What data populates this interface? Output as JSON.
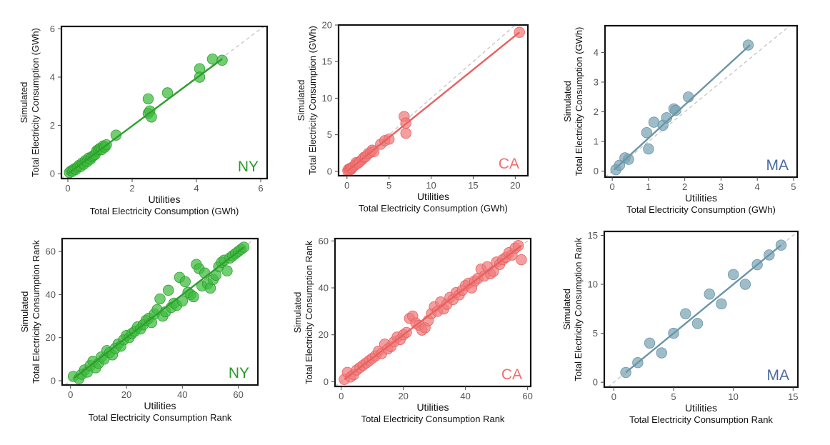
{
  "figure": {
    "rows": 2,
    "cols": 3
  },
  "chart_data": [
    {
      "id": "ny-gwh",
      "type": "scatter",
      "xlabel": [
        "Utilities",
        "Total Electricity Consumption (GWh)"
      ],
      "ylabel": [
        "Simulated",
        "Total Electricity Consumption (GWh)"
      ],
      "xlim": [
        -0.2,
        6.2
      ],
      "ylim": [
        -0.2,
        6.1
      ],
      "xticks": [
        0,
        2,
        4,
        6
      ],
      "yticks": [
        0,
        2,
        4,
        6
      ],
      "state": "NY",
      "color": "#3dbb3d",
      "stroke": "#2e9e2e",
      "label_color": "#2a9a2a",
      "trend": [
        [
          0.02,
          0.02
        ],
        [
          4.8,
          4.75
        ]
      ],
      "identity": [
        [
          -0.2,
          -0.2
        ],
        [
          6.2,
          6.2
        ]
      ],
      "points": [
        [
          0.05,
          0.05
        ],
        [
          0.1,
          0.12
        ],
        [
          0.15,
          0.1
        ],
        [
          0.2,
          0.2
        ],
        [
          0.25,
          0.18
        ],
        [
          0.3,
          0.28
        ],
        [
          0.35,
          0.35
        ],
        [
          0.4,
          0.3
        ],
        [
          0.45,
          0.45
        ],
        [
          0.5,
          0.4
        ],
        [
          0.55,
          0.55
        ],
        [
          0.6,
          0.5
        ],
        [
          0.65,
          0.65
        ],
        [
          0.7,
          0.6
        ],
        [
          0.75,
          0.7
        ],
        [
          0.8,
          0.75
        ],
        [
          0.85,
          0.8
        ],
        [
          0.9,
          0.95
        ],
        [
          0.95,
          1.0
        ],
        [
          1.0,
          1.05
        ],
        [
          1.05,
          1.0
        ],
        [
          1.1,
          1.15
        ],
        [
          1.15,
          1.1
        ],
        [
          1.2,
          1.2
        ],
        [
          1.5,
          1.6
        ],
        [
          2.5,
          3.1
        ],
        [
          2.5,
          2.5
        ],
        [
          2.55,
          2.6
        ],
        [
          2.6,
          2.35
        ],
        [
          3.1,
          3.35
        ],
        [
          4.1,
          4.35
        ],
        [
          4.1,
          4.0
        ],
        [
          4.5,
          4.75
        ],
        [
          4.8,
          4.7
        ]
      ]
    },
    {
      "id": "ca-gwh",
      "type": "scatter",
      "xlabel": [
        "Utilities",
        "Total Electricity Consumption (GWh)"
      ],
      "ylabel": [
        "Simulated",
        "Total Electricity Consumption (GWh)"
      ],
      "xlim": [
        -1,
        21.5
      ],
      "ylim": [
        -0.6,
        20
      ],
      "xticks": [
        0,
        5,
        10,
        15,
        20
      ],
      "yticks": [
        0,
        5,
        10,
        15,
        20
      ],
      "state": "CA",
      "color": "#f07a7a",
      "stroke": "#e86060",
      "label_color": "#f06f6f",
      "trend": [
        [
          0,
          0
        ],
        [
          20.5,
          19
        ]
      ],
      "identity": [
        [
          -0.6,
          -0.6
        ],
        [
          20.5,
          20.5
        ]
      ],
      "points": [
        [
          0.1,
          0.1
        ],
        [
          0.2,
          0.3
        ],
        [
          0.3,
          0.15
        ],
        [
          0.4,
          0.4
        ],
        [
          0.5,
          0.3
        ],
        [
          0.6,
          0.5
        ],
        [
          0.8,
          0.7
        ],
        [
          1.0,
          0.9
        ],
        [
          1.1,
          1.2
        ],
        [
          1.3,
          1.1
        ],
        [
          1.5,
          1.3
        ],
        [
          1.8,
          1.6
        ],
        [
          2.0,
          1.9
        ],
        [
          2.2,
          2.0
        ],
        [
          2.5,
          2.4
        ],
        [
          2.8,
          2.6
        ],
        [
          3.0,
          2.9
        ],
        [
          3.2,
          2.7
        ],
        [
          4.0,
          3.7
        ],
        [
          4.5,
          4.2
        ],
        [
          5.0,
          4.4
        ],
        [
          6.8,
          7.5
        ],
        [
          7.0,
          6.6
        ],
        [
          7.0,
          5.2
        ],
        [
          20.5,
          19
        ]
      ]
    },
    {
      "id": "ma-gwh",
      "type": "scatter",
      "xlabel": [
        "Utilities",
        "Total Electricity Consumption (GWh)"
      ],
      "ylabel": [
        "Simulated",
        "Total Electricity Consumption (GWh)"
      ],
      "xlim": [
        -0.2,
        5.1
      ],
      "ylim": [
        -0.2,
        4.9
      ],
      "xticks": [
        0,
        1,
        2,
        3,
        4,
        5
      ],
      "yticks": [
        0,
        1,
        2,
        3,
        4
      ],
      "state": "MA",
      "color": "#7aa3b3",
      "stroke": "#6a95a6",
      "label_color": "#4a6aa3",
      "trend": [
        [
          0.05,
          0.05
        ],
        [
          3.8,
          4.25
        ]
      ],
      "identity": [
        [
          -0.2,
          -0.2
        ],
        [
          4.9,
          4.9
        ]
      ],
      "points": [
        [
          0.1,
          0.05
        ],
        [
          0.2,
          0.2
        ],
        [
          0.35,
          0.45
        ],
        [
          0.45,
          0.4
        ],
        [
          0.95,
          1.3
        ],
        [
          1.0,
          0.75
        ],
        [
          1.15,
          1.65
        ],
        [
          1.4,
          1.55
        ],
        [
          1.5,
          1.8
        ],
        [
          1.7,
          2.1
        ],
        [
          1.75,
          2.05
        ],
        [
          2.1,
          2.5
        ],
        [
          3.75,
          4.25
        ]
      ]
    },
    {
      "id": "ny-rank",
      "type": "scatter",
      "xlabel": [
        "Utilities",
        "Total Electricity Consumption Rank"
      ],
      "ylabel": [
        "Simulated",
        "Total Electricity Consumption Rank"
      ],
      "xlim": [
        -3,
        67
      ],
      "ylim": [
        -2,
        66
      ],
      "xticks": [
        0,
        20,
        40,
        60
      ],
      "yticks": [
        0,
        20,
        40,
        60
      ],
      "state": "NY",
      "color": "#3dbb3d",
      "stroke": "#2e9e2e",
      "label_color": "#2a9a2a",
      "trend": [
        [
          1,
          1
        ],
        [
          62,
          62
        ]
      ],
      "identity": [
        [
          -2,
          -2
        ],
        [
          66,
          66
        ]
      ],
      "points": [
        [
          1,
          2
        ],
        [
          3,
          1
        ],
        [
          4,
          3
        ],
        [
          5,
          5
        ],
        [
          6,
          4
        ],
        [
          7,
          7
        ],
        [
          8,
          9
        ],
        [
          9,
          6
        ],
        [
          10,
          8
        ],
        [
          11,
          11
        ],
        [
          12,
          10
        ],
        [
          13,
          14
        ],
        [
          14,
          13
        ],
        [
          15,
          12
        ],
        [
          16,
          15
        ],
        [
          17,
          17
        ],
        [
          18,
          16
        ],
        [
          19,
          19
        ],
        [
          20,
          21
        ],
        [
          21,
          20
        ],
        [
          22,
          22
        ],
        [
          23,
          23
        ],
        [
          24,
          25
        ],
        [
          25,
          24
        ],
        [
          26,
          26
        ],
        [
          27,
          28
        ],
        [
          28,
          29
        ],
        [
          29,
          27
        ],
        [
          30,
          31
        ],
        [
          31,
          33
        ],
        [
          32,
          38
        ],
        [
          33,
          30
        ],
        [
          34,
          32
        ],
        [
          35,
          42
        ],
        [
          36,
          34
        ],
        [
          37,
          36
        ],
        [
          38,
          35
        ],
        [
          39,
          48
        ],
        [
          40,
          37
        ],
        [
          41,
          46
        ],
        [
          42,
          41
        ],
        [
          43,
          40
        ],
        [
          44,
          39
        ],
        [
          45,
          54
        ],
        [
          46,
          52
        ],
        [
          47,
          44
        ],
        [
          48,
          50
        ],
        [
          49,
          45
        ],
        [
          50,
          43
        ],
        [
          51,
          47
        ],
        [
          52,
          49
        ],
        [
          53,
          53
        ],
        [
          54,
          55
        ],
        [
          55,
          56
        ],
        [
          56,
          51
        ],
        [
          57,
          57
        ],
        [
          58,
          58
        ],
        [
          59,
          59
        ],
        [
          60,
          60
        ],
        [
          61,
          61
        ],
        [
          62,
          62
        ]
      ]
    },
    {
      "id": "ca-rank",
      "type": "scatter",
      "xlabel": [
        "Utilities",
        "Total Electricity Consumption Rank"
      ],
      "ylabel": [
        "Simulated",
        "Total Electricity Consumption Rank"
      ],
      "xlim": [
        -2,
        61
      ],
      "ylim": [
        -2,
        61
      ],
      "xticks": [
        0,
        20,
        40,
        60
      ],
      "yticks": [
        0,
        20,
        40,
        60
      ],
      "state": "CA",
      "color": "#f07a7a",
      "stroke": "#e86060",
      "label_color": "#f06f6f",
      "trend": [
        [
          1,
          1
        ],
        [
          58,
          58
        ]
      ],
      "identity": [
        [
          -2,
          -2
        ],
        [
          61,
          61
        ]
      ],
      "points": [
        [
          1,
          1
        ],
        [
          2,
          4
        ],
        [
          3,
          2
        ],
        [
          4,
          3
        ],
        [
          5,
          5
        ],
        [
          6,
          6
        ],
        [
          7,
          7
        ],
        [
          8,
          8
        ],
        [
          9,
          9
        ],
        [
          10,
          10
        ],
        [
          11,
          11
        ],
        [
          12,
          13
        ],
        [
          13,
          12
        ],
        [
          14,
          16
        ],
        [
          15,
          14
        ],
        [
          16,
          15
        ],
        [
          17,
          17
        ],
        [
          18,
          19
        ],
        [
          19,
          18
        ],
        [
          20,
          20
        ],
        [
          21,
          21
        ],
        [
          22,
          27
        ],
        [
          23,
          28
        ],
        [
          24,
          25
        ],
        [
          25,
          24
        ],
        [
          26,
          22
        ],
        [
          27,
          23
        ],
        [
          28,
          26
        ],
        [
          29,
          29
        ],
        [
          30,
          32
        ],
        [
          31,
          30
        ],
        [
          32,
          34
        ],
        [
          33,
          31
        ],
        [
          34,
          33
        ],
        [
          35,
          36
        ],
        [
          36,
          35
        ],
        [
          37,
          38
        ],
        [
          38,
          37
        ],
        [
          39,
          39
        ],
        [
          40,
          41
        ],
        [
          41,
          42
        ],
        [
          42,
          40
        ],
        [
          43,
          43
        ],
        [
          44,
          44
        ],
        [
          45,
          48
        ],
        [
          46,
          45
        ],
        [
          47,
          49
        ],
        [
          48,
          46
        ],
        [
          49,
          47
        ],
        [
          50,
          51
        ],
        [
          51,
          50
        ],
        [
          52,
          52
        ],
        [
          53,
          53
        ],
        [
          54,
          55
        ],
        [
          55,
          54
        ],
        [
          56,
          57
        ],
        [
          57,
          58
        ],
        [
          58,
          52
        ]
      ]
    },
    {
      "id": "ma-rank",
      "type": "scatter",
      "xlabel": [
        "Utilities",
        "Total Electricity Consumption Rank"
      ],
      "ylabel": [
        "Simulated",
        "Total Electricity Consumption Rank"
      ],
      "xlim": [
        -0.8,
        15.4
      ],
      "ylim": [
        -0.5,
        15.4
      ],
      "xticks": [
        0,
        5,
        10,
        15
      ],
      "yticks": [
        0,
        5,
        10,
        15
      ],
      "state": "MA",
      "color": "#7aa3b3",
      "stroke": "#6a95a6",
      "label_color": "#4a6aa3",
      "trend": [
        [
          1,
          1
        ],
        [
          14,
          14
        ]
      ],
      "identity": [
        [
          -0.5,
          -0.5
        ],
        [
          15.4,
          15.4
        ]
      ],
      "points": [
        [
          1,
          1
        ],
        [
          2,
          2
        ],
        [
          3,
          4
        ],
        [
          4,
          3
        ],
        [
          5,
          5
        ],
        [
          6,
          7
        ],
        [
          7,
          6
        ],
        [
          8,
          9
        ],
        [
          9,
          8
        ],
        [
          10,
          11
        ],
        [
          11,
          10
        ],
        [
          12,
          12
        ],
        [
          13,
          13
        ],
        [
          14,
          14
        ]
      ]
    }
  ]
}
